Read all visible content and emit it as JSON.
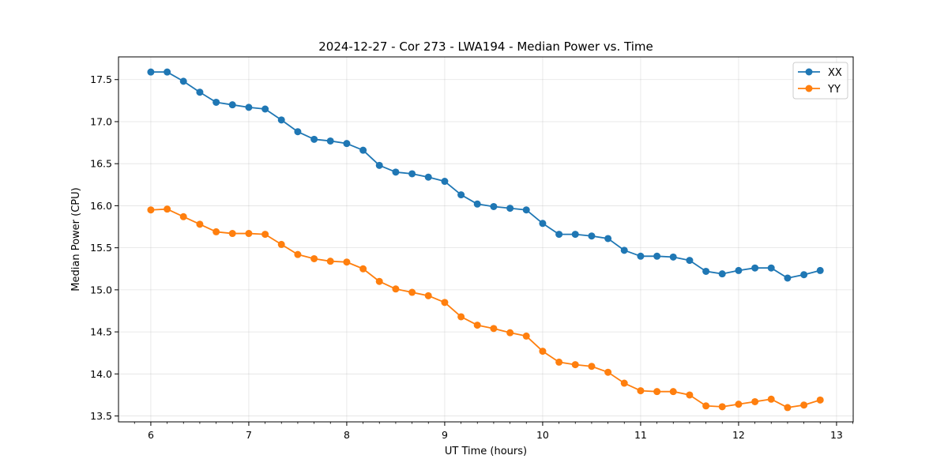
{
  "chart_data": {
    "type": "line",
    "title": "2024-12-27 - Cor 273 - LWA194 - Median Power vs. Time",
    "xlabel": "UT Time (hours)",
    "ylabel": "Median Power (CPU)",
    "xlim": [
      5.67,
      13.17
    ],
    "ylim": [
      13.43,
      17.77
    ],
    "xticks": [
      6,
      7,
      8,
      9,
      10,
      11,
      12,
      13
    ],
    "xtick_labels": [
      "6",
      "7",
      "8",
      "9",
      "10",
      "11",
      "12",
      "13"
    ],
    "yticks": [
      13.5,
      14.0,
      14.5,
      15.0,
      15.5,
      16.0,
      16.5,
      17.0,
      17.5
    ],
    "ytick_labels": [
      "13.5",
      "14.0",
      "14.5",
      "15.0",
      "15.5",
      "16.0",
      "16.5",
      "17.0",
      "17.5"
    ],
    "grid": true,
    "legend_position": "top-right",
    "x": [
      6.0,
      6.167,
      6.333,
      6.5,
      6.667,
      6.833,
      7.0,
      7.167,
      7.333,
      7.5,
      7.667,
      7.833,
      8.0,
      8.167,
      8.333,
      8.5,
      8.667,
      8.833,
      9.0,
      9.167,
      9.333,
      9.5,
      9.667,
      9.833,
      10.0,
      10.167,
      10.333,
      10.5,
      10.667,
      10.833,
      11.0,
      11.167,
      11.333,
      11.5,
      11.667,
      11.833,
      12.0,
      12.167,
      12.333,
      12.5,
      12.667,
      12.833
    ],
    "series": [
      {
        "name": "XX",
        "color": "#1f77b4",
        "values": [
          17.59,
          17.59,
          17.48,
          17.35,
          17.23,
          17.2,
          17.17,
          17.15,
          17.02,
          16.88,
          16.79,
          16.77,
          16.74,
          16.66,
          16.48,
          16.4,
          16.38,
          16.34,
          16.29,
          16.13,
          16.02,
          15.99,
          15.97,
          15.95,
          15.79,
          15.66,
          15.66,
          15.64,
          15.61,
          15.47,
          15.4,
          15.4,
          15.39,
          15.35,
          15.22,
          15.19,
          15.23,
          15.26,
          15.26,
          15.14,
          15.18,
          15.23
        ]
      },
      {
        "name": "YY",
        "color": "#ff7f0e",
        "values": [
          15.95,
          15.96,
          15.87,
          15.78,
          15.69,
          15.67,
          15.67,
          15.66,
          15.54,
          15.42,
          15.37,
          15.34,
          15.33,
          15.25,
          15.1,
          15.01,
          14.97,
          14.93,
          14.85,
          14.68,
          14.58,
          14.54,
          14.49,
          14.45,
          14.27,
          14.14,
          14.11,
          14.09,
          14.02,
          13.89,
          13.8,
          13.79,
          13.79,
          13.75,
          13.62,
          13.61,
          13.64,
          13.67,
          13.7,
          13.6,
          13.63,
          13.69
        ]
      }
    ]
  }
}
